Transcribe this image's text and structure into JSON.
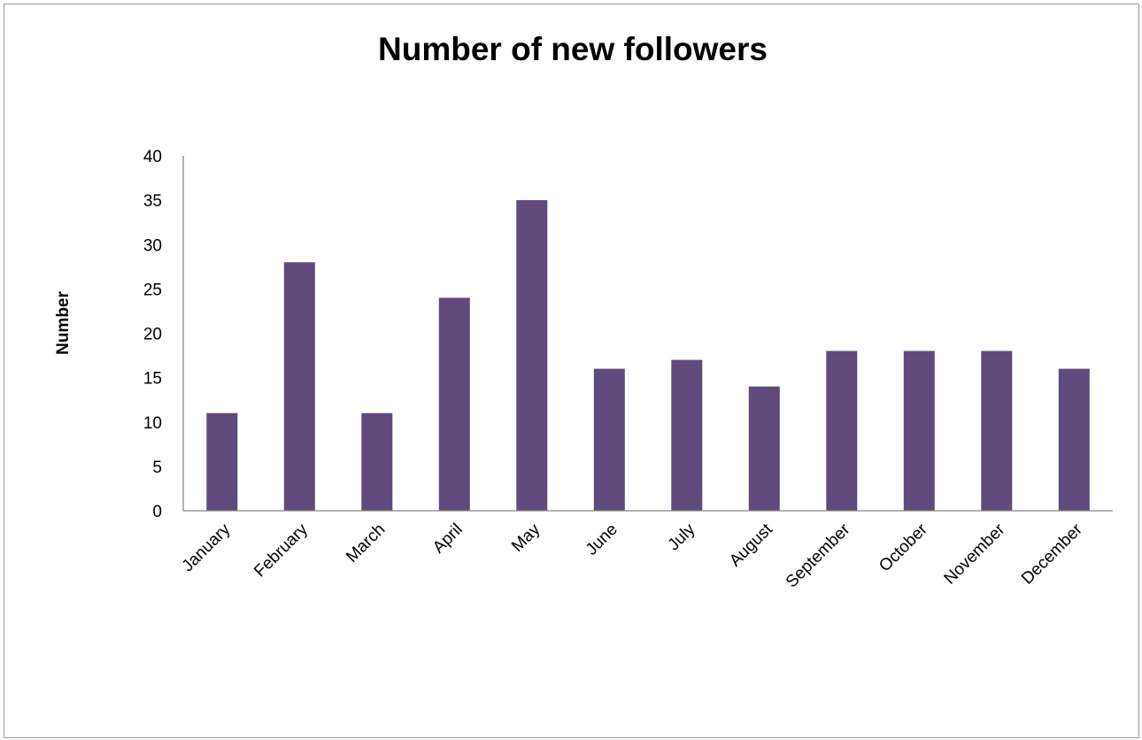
{
  "chart_data": {
    "type": "bar",
    "title": "Number of new followers",
    "xlabel": "",
    "ylabel": "Number",
    "categories": [
      "January",
      "February",
      "March",
      "April",
      "May",
      "June",
      "July",
      "August",
      "September",
      "October",
      "November",
      "December"
    ],
    "values": [
      11,
      28,
      11,
      24,
      35,
      16,
      17,
      14,
      18,
      18,
      18,
      16
    ],
    "ylim": [
      0,
      40
    ],
    "yticks": [
      0,
      5,
      10,
      15,
      20,
      25,
      30,
      35,
      40
    ],
    "grid": false,
    "legend": "none",
    "bar_color": "#604a7b"
  }
}
